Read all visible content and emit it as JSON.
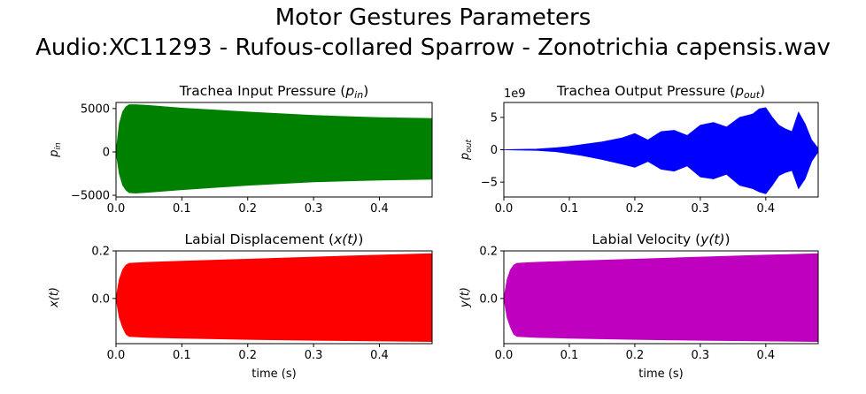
{
  "figure": {
    "title_line1": "Motor Gestures Parameters",
    "title_line2": "Audio:XC11293 - Rufous-collared Sparrow - Zonotrichia capensis.wav"
  },
  "chart_data": [
    {
      "type": "area",
      "title": "Trachea Input Pressure (p_in)",
      "title_text": "Trachea Input Pressure (",
      "title_var": "p",
      "title_sub": "in",
      "title_close": ")",
      "ylabel_var": "p",
      "ylabel_sub": "in",
      "xlabel": "",
      "color": "#008000",
      "xlim": [
        0,
        0.48
      ],
      "ylim": [
        -5200,
        5700
      ],
      "xticks": [
        0.0,
        0.1,
        0.2,
        0.3,
        0.4
      ],
      "xtick_labels": [
        "0.0",
        "0.1",
        "0.2",
        "0.3",
        "0.4"
      ],
      "yticks": [
        -5000,
        0,
        5000
      ],
      "ytick_labels": [
        "−5000",
        "0",
        "5000"
      ],
      "offset_label": "",
      "envelope": {
        "x": [
          0,
          0.005,
          0.01,
          0.015,
          0.02,
          0.03,
          0.05,
          0.1,
          0.2,
          0.3,
          0.4,
          0.48
        ],
        "upper": [
          0,
          3200,
          4600,
          5200,
          5450,
          5450,
          5350,
          5050,
          4600,
          4200,
          3950,
          3850
        ],
        "lower": [
          0,
          -2500,
          -3800,
          -4400,
          -4700,
          -4750,
          -4650,
          -4350,
          -3850,
          -3450,
          -3250,
          -3150
        ]
      }
    },
    {
      "type": "area",
      "title": "Trachea Output Pressure (p_out)",
      "title_text": "Trachea Output Pressure (",
      "title_var": "p",
      "title_sub": "out",
      "title_close": ")",
      "ylabel_var": "p",
      "ylabel_sub": "out",
      "xlabel": "",
      "color": "#0000ff",
      "xlim": [
        0,
        0.48
      ],
      "ylim": [
        -7.3,
        7.3
      ],
      "xticks": [
        0.0,
        0.1,
        0.2,
        0.3,
        0.4
      ],
      "xtick_labels": [
        "0.0",
        "0.1",
        "0.2",
        "0.3",
        "0.4"
      ],
      "yticks": [
        -5,
        0,
        5
      ],
      "ytick_labels": [
        "−5",
        "0",
        "5"
      ],
      "offset_label": "1e9",
      "envelope": {
        "x": [
          0,
          0.02,
          0.05,
          0.08,
          0.1,
          0.12,
          0.15,
          0.18,
          0.2,
          0.22,
          0.24,
          0.26,
          0.28,
          0.3,
          0.32,
          0.34,
          0.36,
          0.38,
          0.39,
          0.4,
          0.41,
          0.42,
          0.43,
          0.44,
          0.45,
          0.46,
          0.47,
          0.48
        ],
        "upper": [
          0,
          0.05,
          0.1,
          0.3,
          0.5,
          0.8,
          1.2,
          1.8,
          2.5,
          1.5,
          2.8,
          3.0,
          2.2,
          3.8,
          4.2,
          3.5,
          5.0,
          5.5,
          6.3,
          6.5,
          5.0,
          3.8,
          3.2,
          2.8,
          5.8,
          4.0,
          1.5,
          0.2
        ],
        "lower": [
          0,
          -0.05,
          -0.1,
          -0.3,
          -0.6,
          -0.9,
          -1.5,
          -2.2,
          -2.7,
          -1.8,
          -3.0,
          -3.3,
          -2.5,
          -4.2,
          -4.5,
          -3.8,
          -5.5,
          -6.0,
          -6.5,
          -6.8,
          -5.5,
          -4.0,
          -3.5,
          -3.2,
          -6.0,
          -4.5,
          -1.8,
          -0.3
        ]
      }
    },
    {
      "type": "area",
      "title": "Labial Displacement (x(t))",
      "title_text": "Labial Displacement (",
      "title_var": "x(t)",
      "title_sub": "",
      "title_close": ")",
      "ylabel_var": "x(t)",
      "ylabel_sub": "",
      "xlabel": "time (s)",
      "color": "#ff0000",
      "xlim": [
        0,
        0.48
      ],
      "ylim": [
        -0.19,
        0.2
      ],
      "xticks": [
        0.0,
        0.1,
        0.2,
        0.3,
        0.4
      ],
      "xtick_labels": [
        "0.0",
        "0.1",
        "0.2",
        "0.3",
        "0.4"
      ],
      "yticks": [
        0.0,
        0.2
      ],
      "ytick_labels": [
        "0.0",
        "0.2"
      ],
      "offset_label": "",
      "envelope": {
        "x": [
          0,
          0.005,
          0.01,
          0.015,
          0.02,
          0.05,
          0.1,
          0.2,
          0.3,
          0.4,
          0.48
        ],
        "upper": [
          0,
          0.08,
          0.12,
          0.14,
          0.148,
          0.152,
          0.157,
          0.165,
          0.174,
          0.182,
          0.188
        ],
        "lower": [
          0,
          -0.08,
          -0.12,
          -0.15,
          -0.16,
          -0.164,
          -0.167,
          -0.172,
          -0.176,
          -0.179,
          -0.181
        ]
      }
    },
    {
      "type": "area",
      "title": "Labial Velocity (y(t))",
      "title_text": "Labial Velocity (",
      "title_var": "y(t)",
      "title_sub": "",
      "title_close": ")",
      "ylabel_var": "y(t)",
      "ylabel_sub": "",
      "xlabel": "time (s)",
      "color": "#bf00bf",
      "xlim": [
        0,
        0.48
      ],
      "ylim": [
        -0.19,
        0.2
      ],
      "xticks": [
        0.0,
        0.1,
        0.2,
        0.3,
        0.4
      ],
      "xtick_labels": [
        "0.0",
        "0.1",
        "0.2",
        "0.3",
        "0.4"
      ],
      "yticks": [
        0.0,
        0.2
      ],
      "ytick_labels": [
        "0.0",
        "0.2"
      ],
      "offset_label": "",
      "envelope": {
        "x": [
          0,
          0.005,
          0.01,
          0.015,
          0.02,
          0.05,
          0.1,
          0.2,
          0.3,
          0.4,
          0.48
        ],
        "upper": [
          0,
          0.08,
          0.12,
          0.14,
          0.148,
          0.152,
          0.157,
          0.165,
          0.174,
          0.182,
          0.188
        ],
        "lower": [
          0,
          -0.08,
          -0.12,
          -0.15,
          -0.16,
          -0.164,
          -0.167,
          -0.172,
          -0.176,
          -0.179,
          -0.181
        ]
      }
    }
  ]
}
